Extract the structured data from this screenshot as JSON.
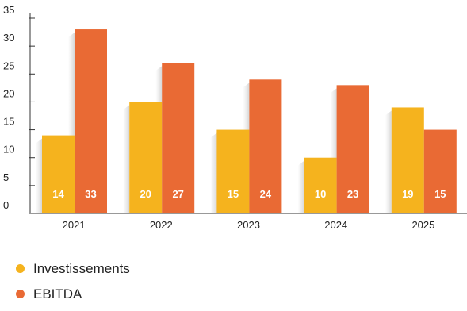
{
  "chart_data": {
    "type": "bar",
    "categories": [
      "2021",
      "2022",
      "2023",
      "2024",
      "2025"
    ],
    "series": [
      {
        "name": "Investissements",
        "values": [
          14,
          20,
          15,
          10,
          19
        ],
        "color": "#F5B31E"
      },
      {
        "name": "EBITDA",
        "values": [
          33,
          27,
          24,
          23,
          15
        ],
        "color": "#E96A34"
      }
    ],
    "y_ticks": [
      0,
      5,
      10,
      15,
      20,
      25,
      30,
      35
    ],
    "ylim": [
      0,
      35
    ],
    "title": "",
    "xlabel": "",
    "ylabel": "",
    "grid": false,
    "legend_position": "bottom-left",
    "data_labels": true
  }
}
